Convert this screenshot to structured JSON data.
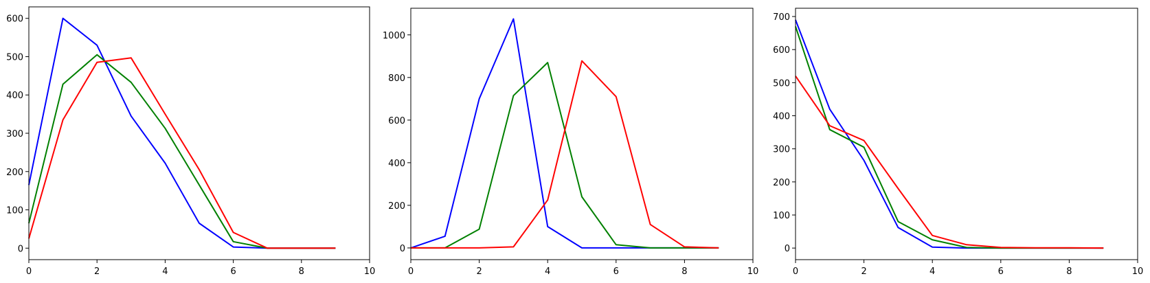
{
  "chart_data": [
    {
      "type": "line",
      "xlim": [
        0,
        10
      ],
      "ylim": [
        -30,
        630
      ],
      "xticks": [
        0,
        2,
        4,
        6,
        8,
        10
      ],
      "yticks": [
        0,
        100,
        200,
        300,
        400,
        500,
        600
      ],
      "x": [
        0,
        1,
        2,
        3,
        4,
        5,
        6,
        7,
        8,
        9
      ],
      "series": [
        {
          "color": "#0000ff",
          "values": [
            165,
            600,
            530,
            345,
            222,
            65,
            3,
            0,
            0,
            0
          ]
        },
        {
          "color": "#008000",
          "values": [
            65,
            428,
            505,
            433,
            313,
            165,
            17,
            0,
            0,
            0
          ]
        },
        {
          "color": "#ff0000",
          "values": [
            25,
            335,
            485,
            497,
            350,
            205,
            41,
            0,
            0,
            0
          ]
        }
      ]
    },
    {
      "type": "line",
      "xlim": [
        0,
        10
      ],
      "ylim": [
        -55,
        1125
      ],
      "xticks": [
        0,
        2,
        4,
        6,
        8,
        10
      ],
      "yticks": [
        0,
        200,
        400,
        600,
        800,
        1000
      ],
      "x": [
        0,
        1,
        2,
        3,
        4,
        5,
        6,
        7,
        8,
        9
      ],
      "series": [
        {
          "color": "#0000ff",
          "values": [
            0,
            55,
            700,
            1075,
            100,
            0,
            0,
            0,
            0,
            0
          ]
        },
        {
          "color": "#008000",
          "values": [
            0,
            0,
            88,
            715,
            870,
            240,
            15,
            0,
            0,
            0
          ]
        },
        {
          "color": "#ff0000",
          "values": [
            0,
            0,
            0,
            5,
            225,
            878,
            710,
            110,
            5,
            0
          ]
        }
      ]
    },
    {
      "type": "line",
      "xlim": [
        0,
        10
      ],
      "ylim": [
        -35,
        725
      ],
      "xticks": [
        0,
        2,
        4,
        6,
        8,
        10
      ],
      "yticks": [
        0,
        100,
        200,
        300,
        400,
        500,
        600,
        700
      ],
      "x": [
        0,
        1,
        2,
        3,
        4,
        5,
        6,
        7,
        8,
        9
      ],
      "series": [
        {
          "color": "#0000ff",
          "values": [
            690,
            420,
            265,
            62,
            3,
            0,
            0,
            0,
            0,
            0
          ]
        },
        {
          "color": "#008000",
          "values": [
            670,
            358,
            305,
            80,
            25,
            2,
            0,
            0,
            0,
            0
          ]
        },
        {
          "color": "#ff0000",
          "values": [
            520,
            370,
            325,
            180,
            38,
            10,
            2,
            1,
            1,
            0
          ]
        }
      ]
    }
  ]
}
